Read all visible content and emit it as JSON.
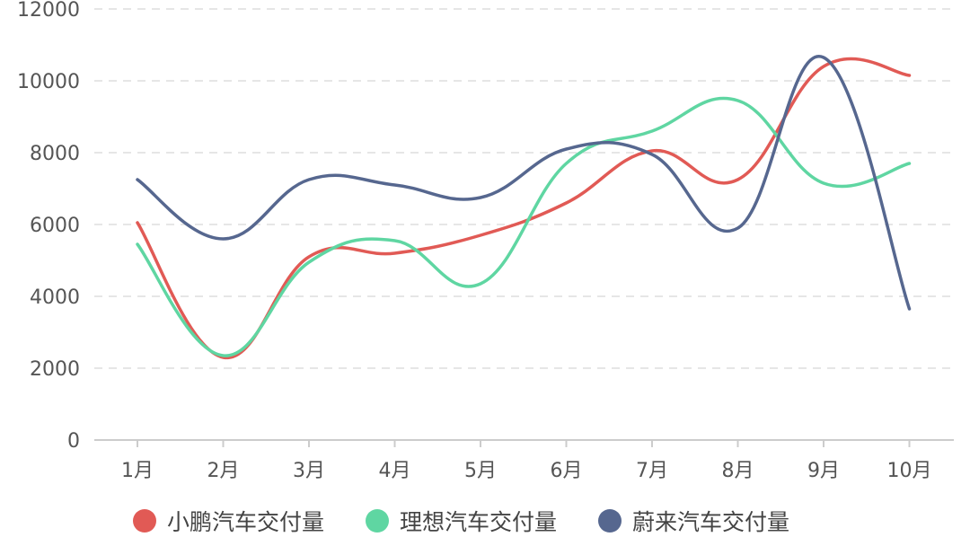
{
  "chart_data": {
    "type": "line",
    "categories": [
      "1月",
      "2月",
      "3月",
      "4月",
      "5月",
      "6月",
      "7月",
      "8月",
      "9月",
      "10月"
    ],
    "ylim": [
      0,
      12000
    ],
    "yticks": [
      0,
      2000,
      4000,
      6000,
      8000,
      10000,
      12000
    ],
    "grid": "horizontal dashed",
    "legend_position": "bottom",
    "smooth": true,
    "series": [
      {
        "name": "小鹏汽车交付量",
        "color": "#e15a55",
        "values": [
          6050,
          2300,
          5100,
          5200,
          5700,
          6600,
          8050,
          7250,
          10400,
          10150
        ]
      },
      {
        "name": "理想汽车交付量",
        "color": "#5fd6a2",
        "values": [
          5450,
          2350,
          4950,
          5550,
          4350,
          7700,
          8600,
          9450,
          7150,
          7700
        ]
      },
      {
        "name": "蔚来汽车交付量",
        "color": "#56678f",
        "values": [
          7250,
          5600,
          7250,
          7100,
          6750,
          8100,
          7950,
          5900,
          10650,
          3650
        ]
      }
    ]
  }
}
